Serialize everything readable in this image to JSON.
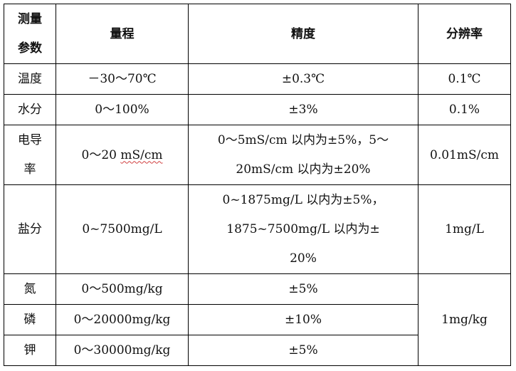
{
  "table": {
    "headers": {
      "param": "测量参数",
      "param_line1": "测量",
      "param_line2": "参数",
      "range": "量程",
      "accuracy": "精度",
      "resolution": "分辨率"
    },
    "rows": [
      {
        "param": "温度",
        "range": "－30～70℃",
        "accuracy": "±0.3℃",
        "resolution": "0.1℃"
      },
      {
        "param": "水分",
        "range": "0～100%",
        "accuracy": "±3%",
        "resolution": "0.1%"
      },
      {
        "param": "电导率",
        "param_line1": "电导",
        "param_line2": "率",
        "range_prefix": "0～20 ",
        "range_unit": "mS/cm",
        "accuracy_line1": "0～5mS/cm 以内为±5%，5～",
        "accuracy_line2": "20mS/cm 以内为±20%",
        "resolution": "0.01mS/cm"
      },
      {
        "param": "盐分",
        "range": "0~7500mg/L",
        "accuracy_line1": "0~1875mg/L 以内为±5%，",
        "accuracy_line2": "1875~7500mg/L 以内为±",
        "accuracy_line3": "20%",
        "resolution": "1mg/L"
      },
      {
        "param": "氮",
        "range": "0～500mg/kg",
        "accuracy": "±5%"
      },
      {
        "param": "磷",
        "range": "0～20000mg/kg",
        "accuracy": "±10%"
      },
      {
        "param": "钾",
        "range": "0～30000mg/kg",
        "accuracy": "±5%"
      }
    ],
    "npk_resolution": "1mg/kg"
  }
}
